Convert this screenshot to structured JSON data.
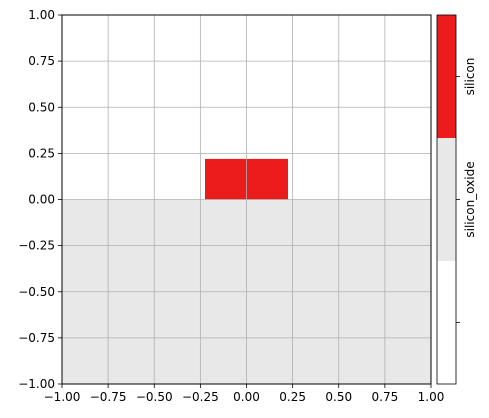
{
  "chart_data": {
    "type": "heatmap",
    "xlim": [
      -1.0,
      1.0
    ],
    "ylim": [
      -1.0,
      1.0
    ],
    "grid": true,
    "x_ticks": [
      "−1.00",
      "−0.75",
      "−0.50",
      "−0.25",
      "0.00",
      "0.25",
      "0.50",
      "0.75",
      "1.00"
    ],
    "x_tick_values": [
      -1.0,
      -0.75,
      -0.5,
      -0.25,
      0.0,
      0.25,
      0.5,
      0.75,
      1.0
    ],
    "y_ticks": [
      "−1.00",
      "−0.75",
      "−0.50",
      "−0.25",
      "0.00",
      "0.25",
      "0.50",
      "0.75",
      "1.00"
    ],
    "y_tick_values": [
      -1.0,
      -0.75,
      -0.5,
      -0.25,
      0.0,
      0.25,
      0.5,
      0.75,
      1.0
    ],
    "regions": [
      {
        "material": "silicon_oxide",
        "x": [
          -1.0,
          1.0
        ],
        "y": [
          -1.0,
          0.0
        ],
        "color": "#e8e8e8"
      },
      {
        "material": "silicon",
        "x": [
          -0.225,
          0.225
        ],
        "y": [
          0.0,
          0.22
        ],
        "color": "#ec1c1c"
      }
    ],
    "colorbar": {
      "segments": [
        {
          "label": "",
          "color": "#ffffff"
        },
        {
          "label": "silicon_oxide",
          "color": "#e8e8e8"
        },
        {
          "label": "silicon",
          "color": "#ec1c1c"
        }
      ]
    }
  }
}
